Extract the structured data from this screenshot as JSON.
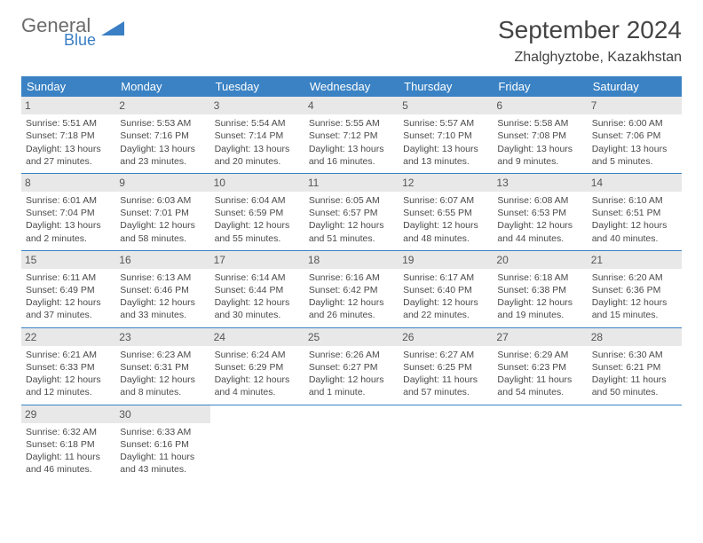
{
  "logo": {
    "text1": "General",
    "text2": "Blue"
  },
  "title": "September 2024",
  "location": "Zhalghyztobe, Kazakhstan",
  "colors": {
    "header_bg": "#3a82c4",
    "header_text": "#ffffff",
    "daynum_bg": "#e8e8e8",
    "row_border": "#3a82c4",
    "body_text": "#4a4a4a",
    "logo_gray": "#6b6b6b",
    "logo_blue": "#3a7fc4"
  },
  "day_headers": [
    "Sunday",
    "Monday",
    "Tuesday",
    "Wednesday",
    "Thursday",
    "Friday",
    "Saturday"
  ],
  "weeks": [
    [
      {
        "n": "1",
        "sunrise": "Sunrise: 5:51 AM",
        "sunset": "Sunset: 7:18 PM",
        "day1": "Daylight: 13 hours",
        "day2": "and 27 minutes."
      },
      {
        "n": "2",
        "sunrise": "Sunrise: 5:53 AM",
        "sunset": "Sunset: 7:16 PM",
        "day1": "Daylight: 13 hours",
        "day2": "and 23 minutes."
      },
      {
        "n": "3",
        "sunrise": "Sunrise: 5:54 AM",
        "sunset": "Sunset: 7:14 PM",
        "day1": "Daylight: 13 hours",
        "day2": "and 20 minutes."
      },
      {
        "n": "4",
        "sunrise": "Sunrise: 5:55 AM",
        "sunset": "Sunset: 7:12 PM",
        "day1": "Daylight: 13 hours",
        "day2": "and 16 minutes."
      },
      {
        "n": "5",
        "sunrise": "Sunrise: 5:57 AM",
        "sunset": "Sunset: 7:10 PM",
        "day1": "Daylight: 13 hours",
        "day2": "and 13 minutes."
      },
      {
        "n": "6",
        "sunrise": "Sunrise: 5:58 AM",
        "sunset": "Sunset: 7:08 PM",
        "day1": "Daylight: 13 hours",
        "day2": "and 9 minutes."
      },
      {
        "n": "7",
        "sunrise": "Sunrise: 6:00 AM",
        "sunset": "Sunset: 7:06 PM",
        "day1": "Daylight: 13 hours",
        "day2": "and 5 minutes."
      }
    ],
    [
      {
        "n": "8",
        "sunrise": "Sunrise: 6:01 AM",
        "sunset": "Sunset: 7:04 PM",
        "day1": "Daylight: 13 hours",
        "day2": "and 2 minutes."
      },
      {
        "n": "9",
        "sunrise": "Sunrise: 6:03 AM",
        "sunset": "Sunset: 7:01 PM",
        "day1": "Daylight: 12 hours",
        "day2": "and 58 minutes."
      },
      {
        "n": "10",
        "sunrise": "Sunrise: 6:04 AM",
        "sunset": "Sunset: 6:59 PM",
        "day1": "Daylight: 12 hours",
        "day2": "and 55 minutes."
      },
      {
        "n": "11",
        "sunrise": "Sunrise: 6:05 AM",
        "sunset": "Sunset: 6:57 PM",
        "day1": "Daylight: 12 hours",
        "day2": "and 51 minutes."
      },
      {
        "n": "12",
        "sunrise": "Sunrise: 6:07 AM",
        "sunset": "Sunset: 6:55 PM",
        "day1": "Daylight: 12 hours",
        "day2": "and 48 minutes."
      },
      {
        "n": "13",
        "sunrise": "Sunrise: 6:08 AM",
        "sunset": "Sunset: 6:53 PM",
        "day1": "Daylight: 12 hours",
        "day2": "and 44 minutes."
      },
      {
        "n": "14",
        "sunrise": "Sunrise: 6:10 AM",
        "sunset": "Sunset: 6:51 PM",
        "day1": "Daylight: 12 hours",
        "day2": "and 40 minutes."
      }
    ],
    [
      {
        "n": "15",
        "sunrise": "Sunrise: 6:11 AM",
        "sunset": "Sunset: 6:49 PM",
        "day1": "Daylight: 12 hours",
        "day2": "and 37 minutes."
      },
      {
        "n": "16",
        "sunrise": "Sunrise: 6:13 AM",
        "sunset": "Sunset: 6:46 PM",
        "day1": "Daylight: 12 hours",
        "day2": "and 33 minutes."
      },
      {
        "n": "17",
        "sunrise": "Sunrise: 6:14 AM",
        "sunset": "Sunset: 6:44 PM",
        "day1": "Daylight: 12 hours",
        "day2": "and 30 minutes."
      },
      {
        "n": "18",
        "sunrise": "Sunrise: 6:16 AM",
        "sunset": "Sunset: 6:42 PM",
        "day1": "Daylight: 12 hours",
        "day2": "and 26 minutes."
      },
      {
        "n": "19",
        "sunrise": "Sunrise: 6:17 AM",
        "sunset": "Sunset: 6:40 PM",
        "day1": "Daylight: 12 hours",
        "day2": "and 22 minutes."
      },
      {
        "n": "20",
        "sunrise": "Sunrise: 6:18 AM",
        "sunset": "Sunset: 6:38 PM",
        "day1": "Daylight: 12 hours",
        "day2": "and 19 minutes."
      },
      {
        "n": "21",
        "sunrise": "Sunrise: 6:20 AM",
        "sunset": "Sunset: 6:36 PM",
        "day1": "Daylight: 12 hours",
        "day2": "and 15 minutes."
      }
    ],
    [
      {
        "n": "22",
        "sunrise": "Sunrise: 6:21 AM",
        "sunset": "Sunset: 6:33 PM",
        "day1": "Daylight: 12 hours",
        "day2": "and 12 minutes."
      },
      {
        "n": "23",
        "sunrise": "Sunrise: 6:23 AM",
        "sunset": "Sunset: 6:31 PM",
        "day1": "Daylight: 12 hours",
        "day2": "and 8 minutes."
      },
      {
        "n": "24",
        "sunrise": "Sunrise: 6:24 AM",
        "sunset": "Sunset: 6:29 PM",
        "day1": "Daylight: 12 hours",
        "day2": "and 4 minutes."
      },
      {
        "n": "25",
        "sunrise": "Sunrise: 6:26 AM",
        "sunset": "Sunset: 6:27 PM",
        "day1": "Daylight: 12 hours",
        "day2": "and 1 minute."
      },
      {
        "n": "26",
        "sunrise": "Sunrise: 6:27 AM",
        "sunset": "Sunset: 6:25 PM",
        "day1": "Daylight: 11 hours",
        "day2": "and 57 minutes."
      },
      {
        "n": "27",
        "sunrise": "Sunrise: 6:29 AM",
        "sunset": "Sunset: 6:23 PM",
        "day1": "Daylight: 11 hours",
        "day2": "and 54 minutes."
      },
      {
        "n": "28",
        "sunrise": "Sunrise: 6:30 AM",
        "sunset": "Sunset: 6:21 PM",
        "day1": "Daylight: 11 hours",
        "day2": "and 50 minutes."
      }
    ],
    [
      {
        "n": "29",
        "sunrise": "Sunrise: 6:32 AM",
        "sunset": "Sunset: 6:18 PM",
        "day1": "Daylight: 11 hours",
        "day2": "and 46 minutes."
      },
      {
        "n": "30",
        "sunrise": "Sunrise: 6:33 AM",
        "sunset": "Sunset: 6:16 PM",
        "day1": "Daylight: 11 hours",
        "day2": "and 43 minutes."
      },
      {
        "empty": true
      },
      {
        "empty": true
      },
      {
        "empty": true
      },
      {
        "empty": true
      },
      {
        "empty": true
      }
    ]
  ]
}
